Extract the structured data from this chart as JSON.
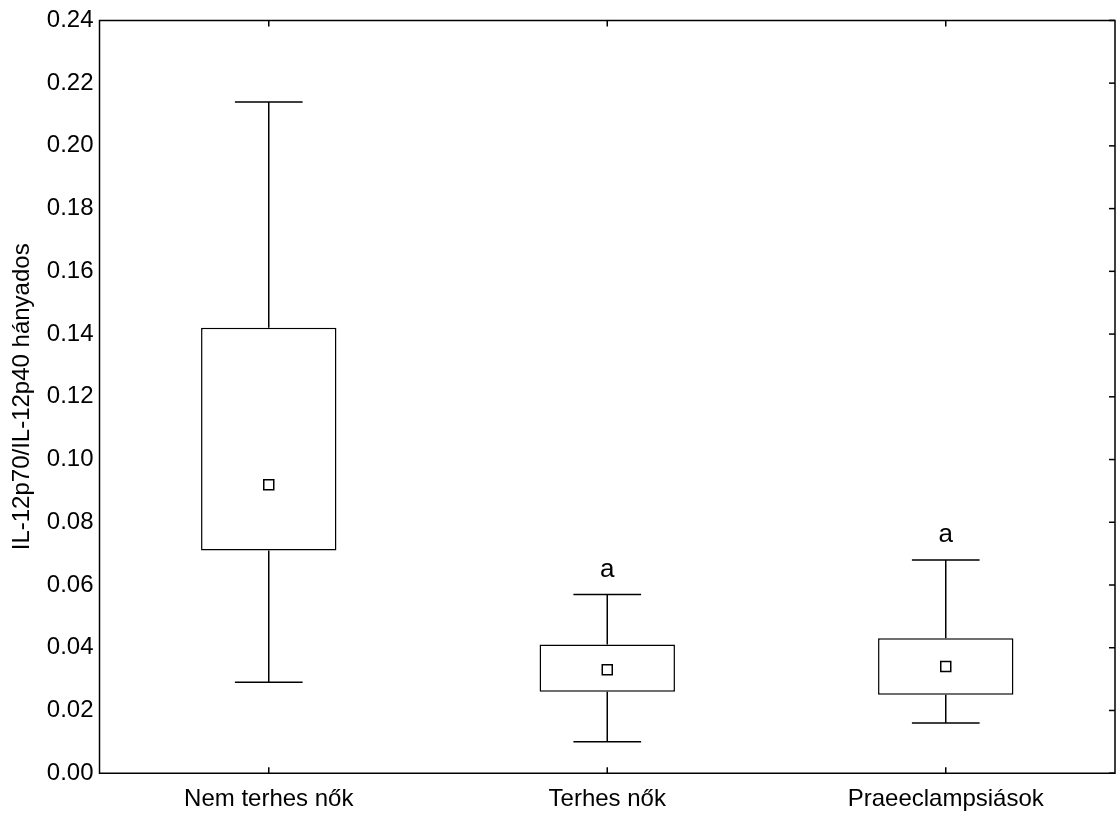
{
  "chart_data": {
    "type": "box",
    "ylabel": "IL-12p70/IL-12p40 hányados",
    "categories": [
      "Nem terhes nők",
      "Terhes nők",
      "Praeeclampsiások"
    ],
    "boxes": [
      {
        "low": 0.029,
        "q1": 0.071,
        "median": 0.092,
        "q3": 0.142,
        "high": 0.214
      },
      {
        "low": 0.01,
        "q1": 0.026,
        "median": 0.033,
        "q3": 0.041,
        "high": 0.057
      },
      {
        "low": 0.016,
        "q1": 0.025,
        "median": 0.034,
        "q3": 0.043,
        "high": 0.068
      }
    ],
    "color": "#000000",
    "marker": "square",
    "ylim": [
      0,
      0.24
    ],
    "yticks": [
      {
        "value": 0,
        "label": "0.00"
      },
      {
        "value": 0.02,
        "label": "0.02"
      },
      {
        "value": 0.04,
        "label": "0.04"
      },
      {
        "value": 0.06,
        "label": "0.06"
      },
      {
        "value": 0.08,
        "label": "0.08"
      },
      {
        "value": 0.1,
        "label": "0.10"
      },
      {
        "value": 0.12,
        "label": "0.12"
      },
      {
        "value": 0.14,
        "label": "0.14"
      },
      {
        "value": 0.16,
        "label": "0.16"
      },
      {
        "value": 0.18,
        "label": "0.18"
      },
      {
        "value": 0.2,
        "label": "0.20"
      },
      {
        "value": 0.22,
        "label": "0.22"
      },
      {
        "value": 0.24,
        "label": "0.24"
      }
    ],
    "grid": false,
    "annotations": [
      {
        "text": "a",
        "x": "Terhes nők",
        "y": 0.057
      },
      {
        "text": "a",
        "x": "Praeeclampsiások",
        "y": 0.068
      }
    ]
  }
}
